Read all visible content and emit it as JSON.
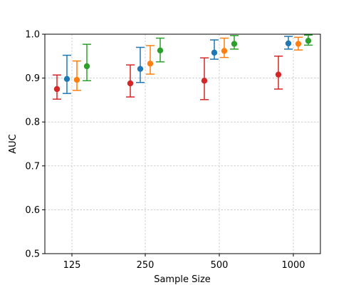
{
  "chart_data": {
    "type": "scatter",
    "xlabel": "Sample Size",
    "ylabel": "AUC",
    "ylim": [
      0.5,
      1.0
    ],
    "yticks": [
      "0.5",
      "0.6",
      "0.7",
      "0.8",
      "0.9",
      "1.0"
    ],
    "categories": [
      "125",
      "250",
      "500",
      "1000"
    ],
    "grid": true,
    "series": [
      {
        "color": "#d62728",
        "values": [
          0.875,
          0.888,
          0.894,
          0.908
        ],
        "lower": [
          0.852,
          0.857,
          0.851,
          0.875
        ],
        "upper": [
          0.907,
          0.93,
          0.946,
          0.95
        ]
      },
      {
        "color": "#1f77b4",
        "values": [
          0.898,
          0.921,
          0.958,
          0.979
        ],
        "lower": [
          0.865,
          0.89,
          0.943,
          0.966
        ],
        "upper": [
          0.952,
          0.97,
          0.987,
          0.995
        ]
      },
      {
        "color": "#ff7f0e",
        "values": [
          0.896,
          0.933,
          0.962,
          0.978
        ],
        "lower": [
          0.872,
          0.909,
          0.947,
          0.964
        ],
        "upper": [
          0.939,
          0.974,
          0.991,
          0.993
        ]
      },
      {
        "color": "#2ca02c",
        "values": [
          0.927,
          0.963,
          0.978,
          0.985
        ],
        "lower": [
          0.894,
          0.937,
          0.966,
          0.975
        ],
        "upper": [
          0.977,
          0.991,
          0.997,
          0.998
        ]
      }
    ]
  }
}
